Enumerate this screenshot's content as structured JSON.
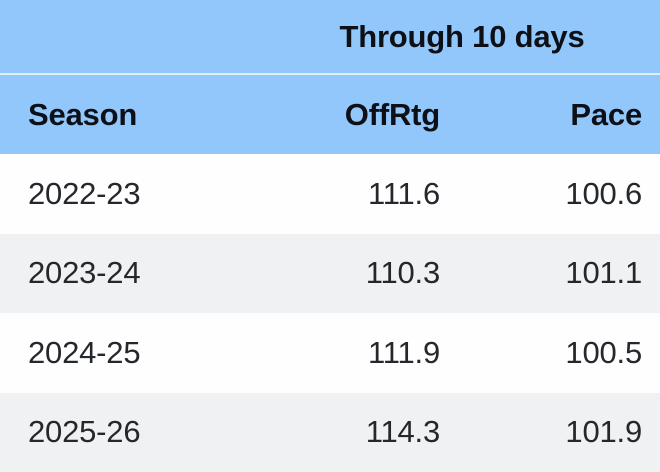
{
  "colors": {
    "header_blue": "#92C7FC",
    "header_divider": "#E3EEFB",
    "row_white": "#FEFEFE",
    "row_gray": "#F0F1F3",
    "header_text": "#0D1117",
    "data_text": "#24272C"
  },
  "table": {
    "title": "Through 10 days",
    "columns": [
      "Season",
      "OffRtg",
      "Pace"
    ],
    "rows": [
      {
        "season": "2022-23",
        "offrtg": "111.6",
        "pace": "100.6"
      },
      {
        "season": "2023-24",
        "offrtg": "110.3",
        "pace": "101.1"
      },
      {
        "season": "2024-25",
        "offrtg": "111.9",
        "pace": "100.5"
      },
      {
        "season": "2025-26",
        "offrtg": "114.3",
        "pace": "101.9"
      }
    ]
  },
  "chart_data": {
    "type": "table",
    "title": "Through 10 days",
    "columns": [
      "Season",
      "OffRtg",
      "Pace"
    ],
    "rows": [
      [
        "2022-23",
        111.6,
        100.6
      ],
      [
        "2023-24",
        110.3,
        101.1
      ],
      [
        "2024-25",
        111.9,
        100.5
      ],
      [
        "2025-26",
        114.3,
        101.9
      ]
    ]
  }
}
